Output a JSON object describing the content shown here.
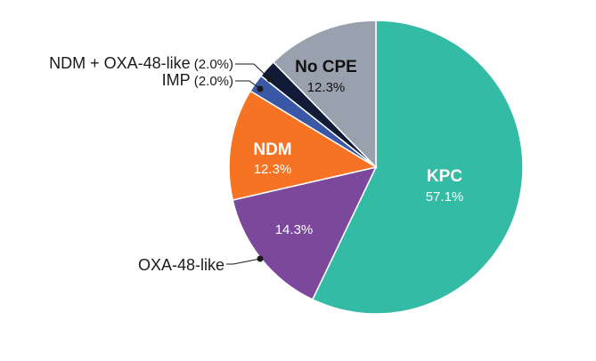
{
  "chart_data": {
    "type": "pie",
    "title": "",
    "start_angle_deg": 0,
    "direction": "clockwise",
    "slices": [
      {
        "key": "kpc",
        "label": "KPC",
        "value": 57.1,
        "display": "57.1%",
        "color": "#33bba6",
        "text_color": "#ffffff",
        "label_position": "inside"
      },
      {
        "key": "oxa",
        "label": "OXA-48-like",
        "value": 14.3,
        "display": "14.3%",
        "color": "#7b489c",
        "text_color": "#ffffff",
        "label_position": "outside",
        "pct_position": "inside"
      },
      {
        "key": "ndm",
        "label": "NDM",
        "value": 12.3,
        "display": "12.3%",
        "color": "#f57322",
        "text_color": "#ffffff",
        "label_position": "inside"
      },
      {
        "key": "imp",
        "label": "IMP",
        "value": 2.0,
        "display": "(2.0%)",
        "color": "#3b58a7",
        "text_color": "#1a1a1a",
        "label_position": "outside"
      },
      {
        "key": "ndmoxa",
        "label": "NDM + OXA-48-like",
        "value": 2.0,
        "display": "(2.0%)",
        "color": "#111a36",
        "text_color": "#1a1a1a",
        "label_position": "outside"
      },
      {
        "key": "nocpe",
        "label": "No CPE",
        "value": 12.3,
        "display": "12.3%",
        "color": "#9aa1ae",
        "text_color": "#111111",
        "label_position": "inside"
      }
    ]
  }
}
